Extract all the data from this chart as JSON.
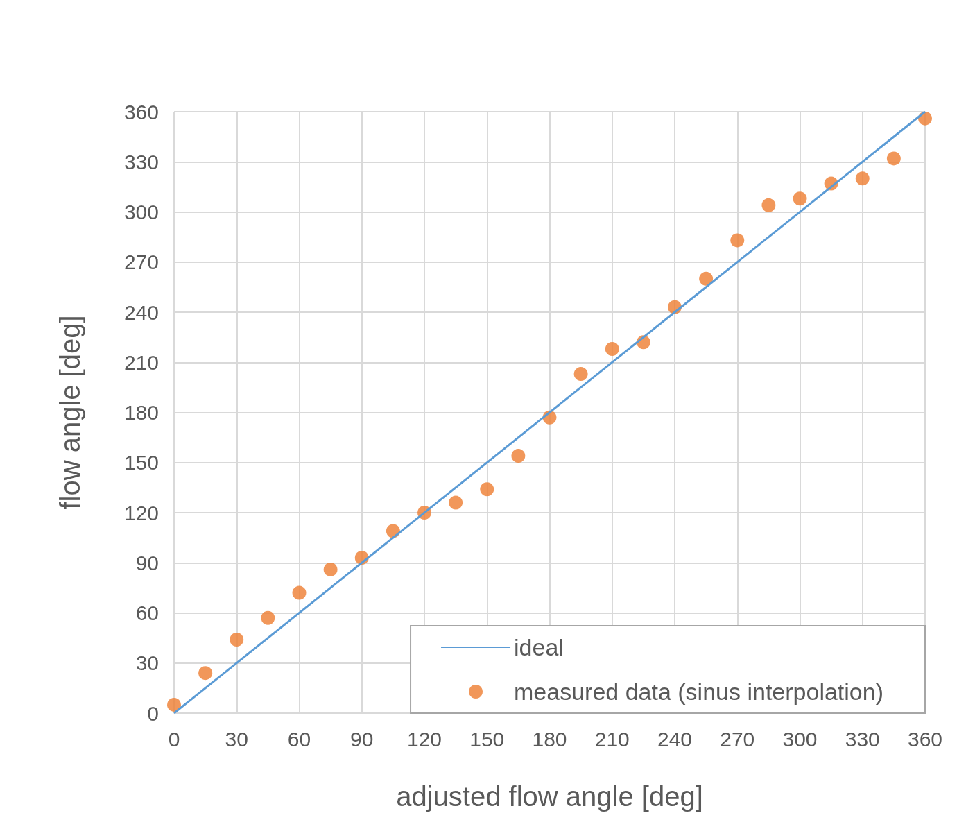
{
  "chart_data": {
    "type": "scatter",
    "xlabel": "adjusted flow angle [deg]",
    "ylabel": "flow angle [deg]",
    "xlim": [
      0,
      360
    ],
    "xticks": [
      0,
      30,
      60,
      90,
      120,
      150,
      180,
      210,
      240,
      270,
      300,
      330,
      360
    ],
    "ylim": [
      0,
      360
    ],
    "yticks": [
      0,
      30,
      60,
      90,
      120,
      150,
      180,
      210,
      240,
      270,
      300,
      330,
      360
    ],
    "grid": true,
    "legend": "bottom right",
    "series": [
      {
        "name": "ideal",
        "type": "line",
        "color": "#5b9bd5",
        "marker": "none",
        "x": [
          0,
          360
        ],
        "values": [
          0,
          360
        ]
      },
      {
        "name": "measured data (sinus interpolation)",
        "color": "#ed7d31",
        "marker": "circle",
        "x": [
          0,
          15,
          30,
          45,
          60,
          75,
          90,
          105,
          120,
          135,
          150,
          165,
          180,
          195,
          210,
          225,
          240,
          255,
          270,
          285,
          300,
          315,
          330,
          345,
          360
        ],
        "values": [
          5,
          24,
          44,
          57,
          72,
          86,
          93,
          109,
          120,
          126,
          134,
          154,
          177,
          203,
          218,
          222,
          243,
          260,
          283,
          304,
          308,
          317,
          320,
          332,
          356
        ]
      }
    ]
  }
}
